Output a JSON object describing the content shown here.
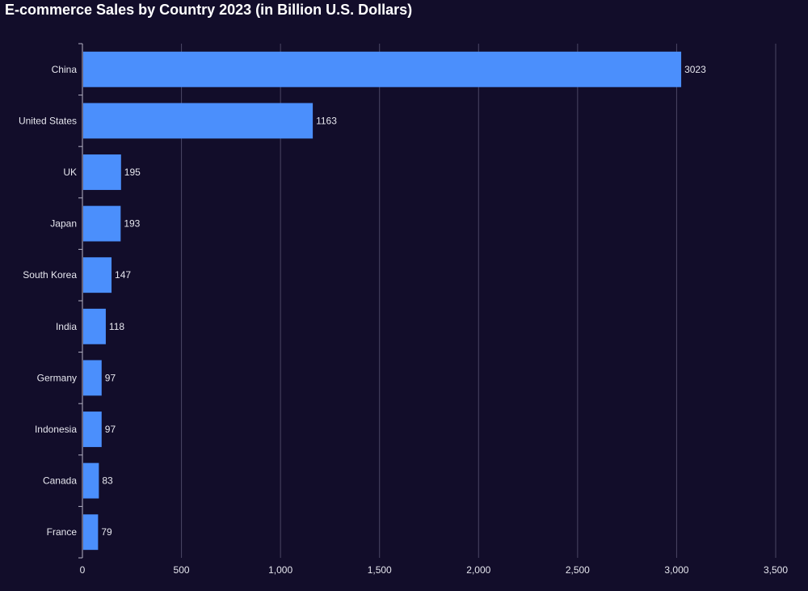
{
  "chart_data": {
    "type": "bar",
    "orientation": "horizontal",
    "title": "E-commerce Sales by Country 2023 (in Billion U.S. Dollars)",
    "xlabel": "",
    "ylabel": "",
    "categories": [
      "China",
      "United States",
      "UK",
      "Japan",
      "South Korea",
      "India",
      "Germany",
      "Indonesia",
      "Canada",
      "France"
    ],
    "values": [
      3023,
      1163,
      195,
      193,
      147,
      118,
      97,
      97,
      83,
      79
    ],
    "xlim": [
      0,
      3500
    ],
    "x_ticks": [
      0,
      500,
      1000,
      1500,
      2000,
      2500,
      3000,
      3500
    ],
    "x_tick_labels": [
      "0",
      "500",
      "1,000",
      "1,500",
      "2,000",
      "2,500",
      "3,000",
      "3,500"
    ],
    "grid": "vertical",
    "data_labels": true,
    "colors": {
      "background": "#120d2a",
      "bar": "#4b8ffc",
      "grid": "#4a4664",
      "axis": "#b5b3c4",
      "text": "#e6e6ee"
    }
  }
}
